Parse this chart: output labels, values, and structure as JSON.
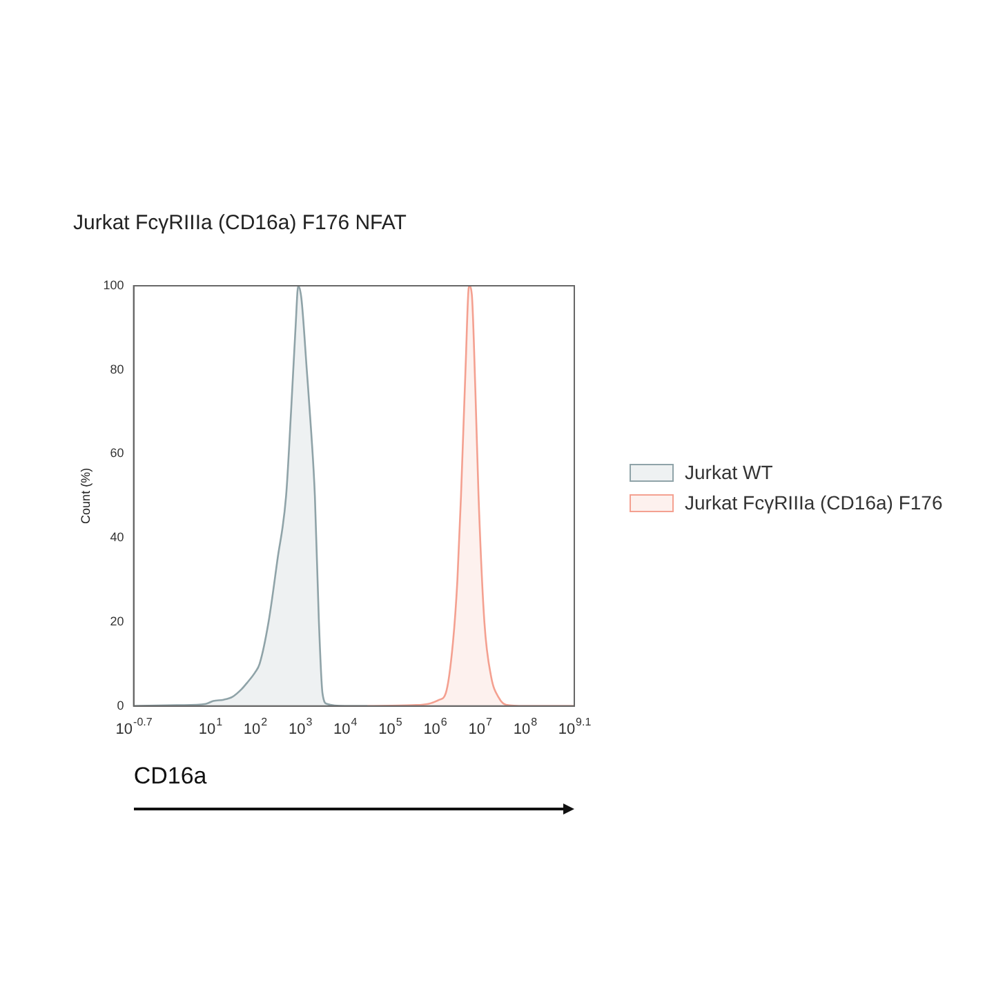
{
  "chart_data": {
    "type": "area",
    "title": "Jurkat FcγRIIIa (CD16a) F176 NFAT",
    "xlabel": "CD16a",
    "ylabel": "Count (%)",
    "log": "x",
    "xlim": [
      0.1995,
      1259000000
    ],
    "xticks": [
      {
        "value": 0.1995,
        "label": "10$^{-0.7}$"
      },
      {
        "value": 10,
        "label": "10$^{1}$"
      },
      {
        "value": 100,
        "label": "10$^{2}$"
      },
      {
        "value": 1000,
        "label": "10$^{3}$"
      },
      {
        "value": 10000,
        "label": "10$^{4}$"
      },
      {
        "value": 100000,
        "label": "10$^{5}$"
      },
      {
        "value": 1000000,
        "label": "10$^{6}$"
      },
      {
        "value": 10000000,
        "label": "10$^{7}$"
      },
      {
        "value": 100000000,
        "label": "10$^{8}$"
      },
      {
        "value": 1259000000,
        "label": "10$^{9.1}$"
      }
    ],
    "ylim": [
      0,
      100
    ],
    "yticks": [
      0,
      20,
      40,
      60,
      80,
      100
    ],
    "grid": false,
    "legend": "right",
    "series": [
      {
        "name": "Jurkat WT",
        "color": "#8fa3a8",
        "x": [
          0.1995,
          1.995,
          7.943,
          11.75,
          19.95,
          31.62,
          50.12,
          66.07,
          100,
          125.9,
          199.5,
          316.2,
          489.8,
          631,
          794.3,
          912,
          1072,
          1413,
          1778,
          2138,
          2630,
          3162,
          3981,
          10000,
          31620
        ],
        "values": [
          0,
          0.2,
          0.5,
          1.2,
          1.5,
          2.2,
          4,
          5.5,
          8,
          10,
          20,
          35,
          50,
          70,
          90,
          100,
          97,
          80,
          65,
          50,
          20,
          3,
          0.5,
          0,
          0
        ]
      },
      {
        "name": "Jurkat FcγRIIIa (CD16a) F176",
        "color": "#f4a090",
        "x": [
          31620,
          316200,
          707900,
          1259000,
          1738000,
          2512000,
          3162000,
          3802000,
          4786000,
          5754000,
          6607000,
          7943000,
          9333000,
          12590000,
          17780000,
          26300000,
          38020000,
          100000000,
          1259000000
        ],
        "values": [
          0,
          0.2,
          0.5,
          1.5,
          3,
          15,
          30,
          50,
          80,
          100,
          98,
          75,
          50,
          20,
          7,
          2,
          0.3,
          0,
          0
        ]
      }
    ]
  }
}
